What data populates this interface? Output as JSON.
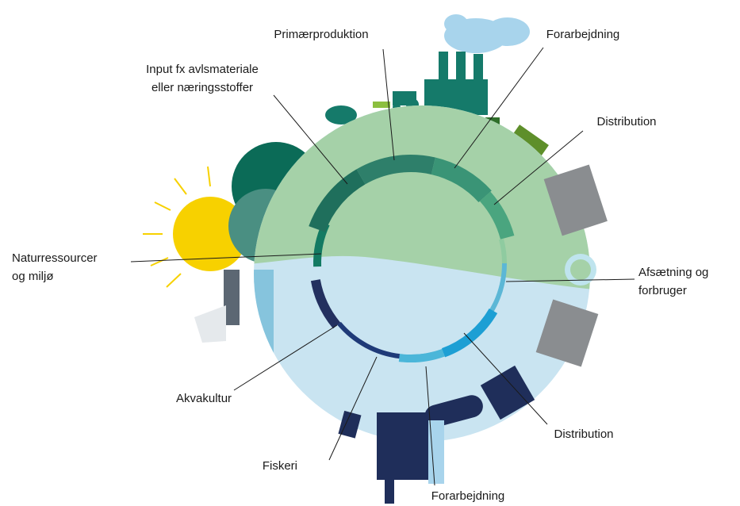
{
  "labels": [
    {
      "lines": [
        "Primærproduktion"
      ]
    },
    {
      "lines": [
        "Forarbejdning"
      ]
    },
    {
      "lines": [
        "Input fx avlsmateriale",
        "eller næringsstoffer"
      ]
    },
    {
      "lines": [
        "Distribution"
      ]
    },
    {
      "lines": [
        "Naturressourcer",
        "og miljø"
      ]
    },
    {
      "lines": [
        "Afsætning og",
        "forbruger"
      ]
    },
    {
      "lines": [
        "Akvakultur"
      ]
    },
    {
      "lines": [
        "Distribution"
      ]
    },
    {
      "lines": [
        "Fiskeri"
      ]
    },
    {
      "lines": [
        "Forarbejdning"
      ]
    }
  ]
}
